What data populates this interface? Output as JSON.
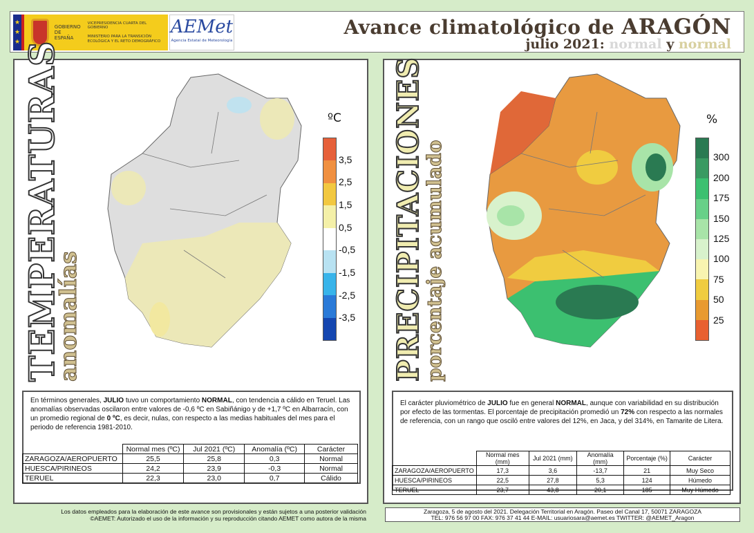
{
  "header": {
    "gov_stars": "★ ★ ★",
    "gov_name": "GOBIERNO DE ESPAÑA",
    "gov_vice": "VICEPRESIDENCIA CUARTA DEL GOBIERNO",
    "gov_ministry": "MINISTERIO PARA LA TRANSICIÓN ECOLÓGICA Y EL RETO DEMOGRÁFICO",
    "aemet_logo": "AEMet",
    "aemet_sub": "Agencia Estatal de Meteorología",
    "title_prefix": "Avance climatológico de ",
    "title_region": "ARAGÓN",
    "subtitle_period": "julio 2021: ",
    "subtitle_temp": "normal",
    "subtitle_y": " y ",
    "subtitle_prec": "normal"
  },
  "colors": {
    "background": "#d6ecc9",
    "title": "#4a3c30",
    "temp_char": "#d8d8d8",
    "prec_char": "#d8d0a0"
  },
  "temperature": {
    "title": "TEMPERATURAS",
    "subtitle": "anomalías",
    "unit": "ºC",
    "legend_labels": [
      "3,5",
      "2,5",
      "1,5",
      "0,5",
      "-0,5",
      "-1,5",
      "-2,5",
      "-3,5"
    ],
    "legend_colors": [
      "#e6603a",
      "#f09040",
      "#f2c840",
      "#f4f0a8",
      "#ffffff",
      "#b8e2f2",
      "#38b4ea",
      "#2a7ad8",
      "#1446b0"
    ],
    "text_parts": [
      "En términos generales, ",
      "JULIO",
      " tuvo un comportamiento ",
      "NORMAL",
      ", con tendencia a cálido en Teruel. Las anomalías observadas oscilaron entre valores de -0,6 ºC en Sabiñánigo y de +1,7 ºC en Albarracín, con un promedio regional de ",
      "0 ºC",
      ", es decir, nulas, con respecto a las medias habituales del mes para el periodo de referencia 1981-2010."
    ],
    "table": {
      "headers": [
        "Normal mes (ºC)",
        "Jul 2021 (ºC)",
        "Anomalía (ºC)",
        "Carácter"
      ],
      "rows": [
        [
          "ZARAGOZA/AEROPUERTO",
          "25,5",
          "25,8",
          "0,3",
          "Normal"
        ],
        [
          "HUESCA/PIRINEOS",
          "24,2",
          "23,9",
          "-0,3",
          "Normal"
        ],
        [
          "TERUEL",
          "22,3",
          "23,0",
          "0,7",
          "Cálido"
        ]
      ]
    }
  },
  "precipitation": {
    "title": "PRECIPITACIONES",
    "subtitle": "porcentaje acumulado",
    "unit": "%",
    "legend_labels": [
      "300",
      "200",
      "175",
      "150",
      "125",
      "100",
      "75",
      "50",
      "25"
    ],
    "legend_colors": [
      "#2a7a52",
      "#3a9a62",
      "#3cc070",
      "#68d088",
      "#a8e4a8",
      "#d8f2cc",
      "#f8f4b0",
      "#f0cc40",
      "#e89a30",
      "#e86030"
    ],
    "text_parts": [
      "El carácter pluviométrico de ",
      "JULIO",
      " fue en general ",
      "NORMAL",
      ", aunque con variabilidad en su distribución por efecto de las tormentas. El porcentaje de precipitación promedió un ",
      "72%",
      " con respecto a las normales de referencia, con un rango que osciló entre valores del 12%, en Jaca, y del 314%, en Tamarite de Litera."
    ],
    "table": {
      "headers": [
        "Normal mes (mm)",
        "Jul 2021 (mm)",
        "Anomalía (mm)",
        "Porcentaje (%)",
        "Carácter"
      ],
      "rows": [
        [
          "ZARAGOZA/AEROPUERTO",
          "17,3",
          "3,6",
          "-13,7",
          "21",
          "Muy Seco"
        ],
        [
          "HUESCA/PIRINEOS",
          "22,5",
          "27,8",
          "5,3",
          "124",
          "Húmedo"
        ],
        [
          "TERUEL",
          "23,7",
          "43,8",
          "20,1",
          "185",
          "Muy Húmedo"
        ]
      ]
    }
  },
  "footer": {
    "disclaimer_1": "Los datos empleados para la elaboración de este avance son provisionales y están sujetos a una posterior validación",
    "disclaimer_2": "©AEMET: Autorizado el uso de la información y su reproducción citando AEMET como autora de la misma",
    "contact_1": "Zaragoza, 5 de agosto del 2021. Delegación Territorial en Aragón. Paseo del Canal 17, 50071 ZARAGOZA",
    "contact_2": "TEL: 976 56 97 00  FAX: 976 37 41 44  E-MAIL: usuariosara@aemet.es  TWITTER: @AEMET_Aragon"
  }
}
